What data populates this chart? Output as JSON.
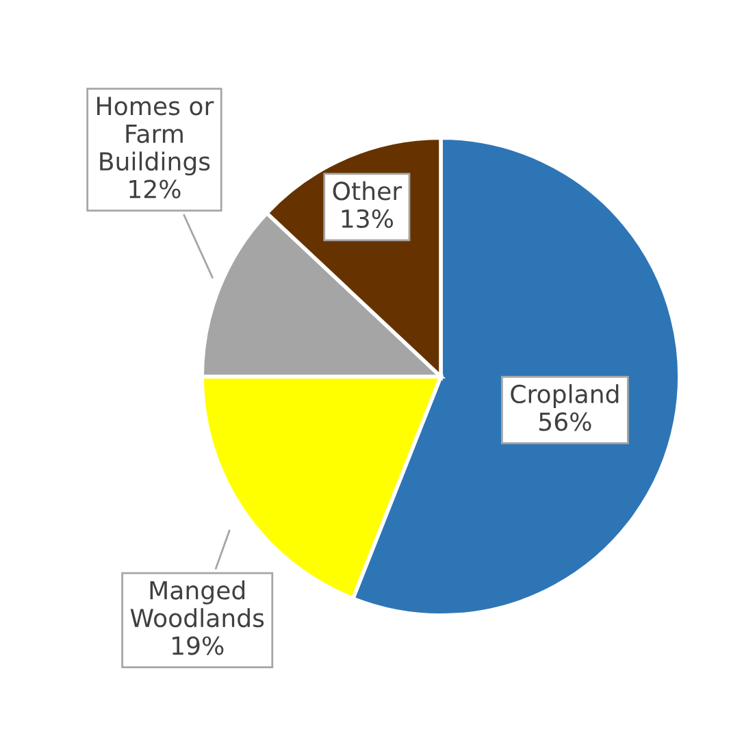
{
  "chart_data": {
    "type": "pie",
    "categories": [
      "Cropland",
      "Manged Woodlands",
      "Homes or Farm Buildings",
      "Other"
    ],
    "values": [
      56,
      19,
      12,
      13
    ],
    "colors": [
      "#2e75b6",
      "#ffff00",
      "#a5a5a5",
      "#663300"
    ],
    "value_labels": [
      "56%",
      "19%",
      "12%",
      "13%"
    ]
  }
}
